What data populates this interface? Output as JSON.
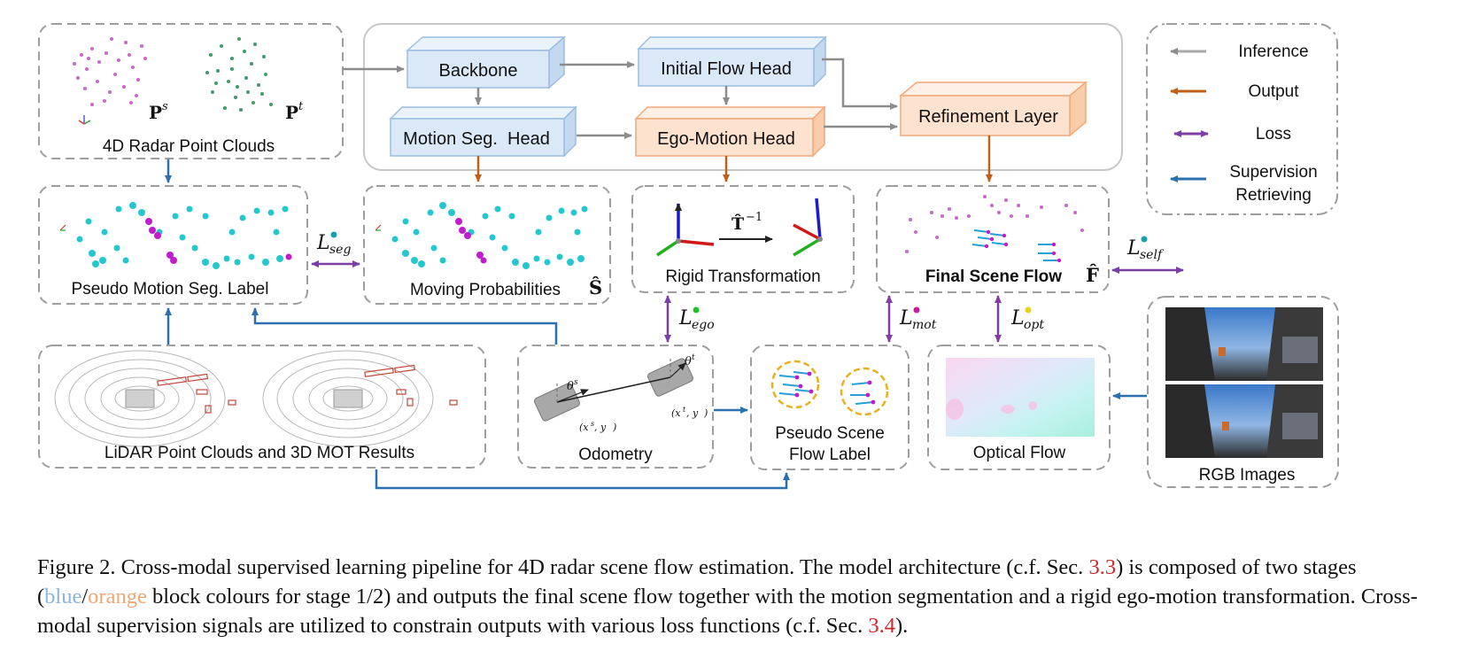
{
  "legend": {
    "items": [
      {
        "label": "Inference",
        "color": "#a9a9a9"
      },
      {
        "label": "Output",
        "color": "#c0601a"
      },
      {
        "label": "Loss",
        "color": "#7b3fa6"
      },
      {
        "label": "Supervision",
        "label2": "Retrieving",
        "color": "#2b6fad"
      }
    ]
  },
  "blocks": {
    "backbone": "Backbone",
    "initial_flow_head": "Initial Flow Head",
    "motion_seg_head": "Motion Seg.  Head",
    "ego_motion_head": "Ego-Motion Head",
    "refinement_layer": "Refinement Layer"
  },
  "panels": {
    "radar": "4D Radar Point Clouds",
    "radar_ps": "P",
    "radar_ps_sup": "s",
    "radar_pt": "P",
    "radar_pt_sup": "t",
    "pseudo_seg": "Pseudo Motion Seg. Label",
    "moving_prob": "Moving Probabilities",
    "moving_prob_sym": "Ŝ",
    "rigid": "Rigid Transformation",
    "rigid_sym": "T̂",
    "rigid_sup": "−1",
    "final_flow": "Final Scene Flow",
    "final_flow_sym": "F̂",
    "lidar": "LiDAR Point Clouds and 3D MOT Results",
    "odometry": "Odometry",
    "theta_s": "θ",
    "theta_s_sup": "s",
    "theta_t": "θ",
    "theta_t_sup": "t",
    "pos_s": "(x",
    "pos_s_sup": "s",
    "pos_s_mid": ", y",
    "pos_s_end": ")",
    "pos_t": "(x",
    "pos_t_sup": "t",
    "pos_t_mid": ", y",
    "pos_t_end": ")",
    "pseudo_flow_1": "Pseudo Scene",
    "pseudo_flow_2": "Flow Label",
    "optical_flow": "Optical Flow",
    "rgb": "RGB Images"
  },
  "losses": {
    "seg": {
      "base": "L",
      "sub": "seg",
      "dot": "#17a0b0"
    },
    "self": {
      "base": "L",
      "sub": "self",
      "dot": "#17a0b0"
    },
    "ego": {
      "base": "L",
      "sub": "ego",
      "dot": "#22c322"
    },
    "mot": {
      "base": "L",
      "sub": "mot",
      "dot": "#c81a9c"
    },
    "opt": {
      "base": "L",
      "sub": "opt",
      "dot": "#e6d21a"
    }
  },
  "colors": {
    "stage1_fill": "#dbe8f7",
    "stage1_stroke": "#9bbde2",
    "stage2_fill": "#fde3cf",
    "stage2_stroke": "#f2a978",
    "cyan_points": "#25c7cf",
    "magenta_points": "#c01ccc"
  },
  "caption": {
    "p1": "Figure 2. Cross-modal supervised learning pipeline for 4D radar scene flow estimation. The model architecture (c.f. Sec. ",
    "ref1": "3.3",
    "p2": ") is composed of two stages (",
    "blue": "blue",
    "slash": "/",
    "orange": "orange",
    "p3": " block colours for stage 1/2) and outputs the final scene flow together with the motion segmentation and a rigid ego-motion transformation. Cross-modal supervision signals are utilized to constrain outputs with various loss functions (c.f. Sec. ",
    "ref2": "3.4",
    "p4": ")."
  }
}
